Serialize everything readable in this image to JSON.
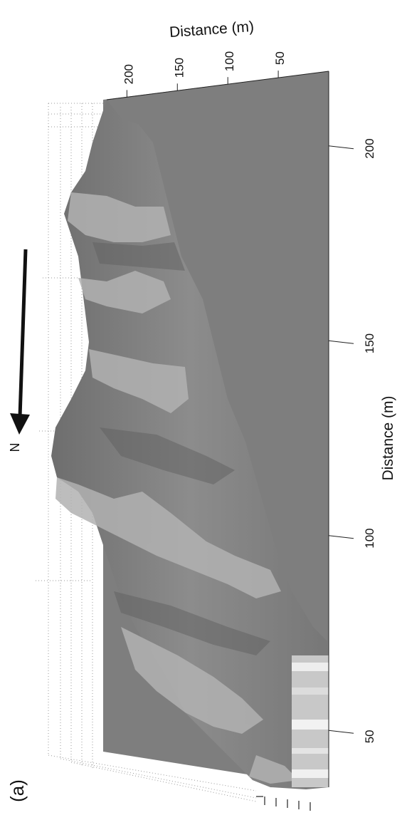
{
  "panel_label": "(a)",
  "north_label": "N",
  "chart_data": {
    "type": "surface",
    "top_axis": {
      "label": "Distance (m)",
      "ticks": [
        "200",
        "150",
        "100",
        "50"
      ],
      "tick_values": [
        200,
        150,
        100,
        50
      ]
    },
    "right_axis": {
      "label": "Distance (m)",
      "ticks": [
        "200",
        "150",
        "100",
        "50"
      ],
      "tick_values": [
        200,
        150,
        100,
        50
      ]
    },
    "colors": {
      "plane": "#7d7d7d",
      "surface": "#8a8a8a",
      "light_band": "#b3b3b3",
      "arrow": "#111111"
    }
  }
}
